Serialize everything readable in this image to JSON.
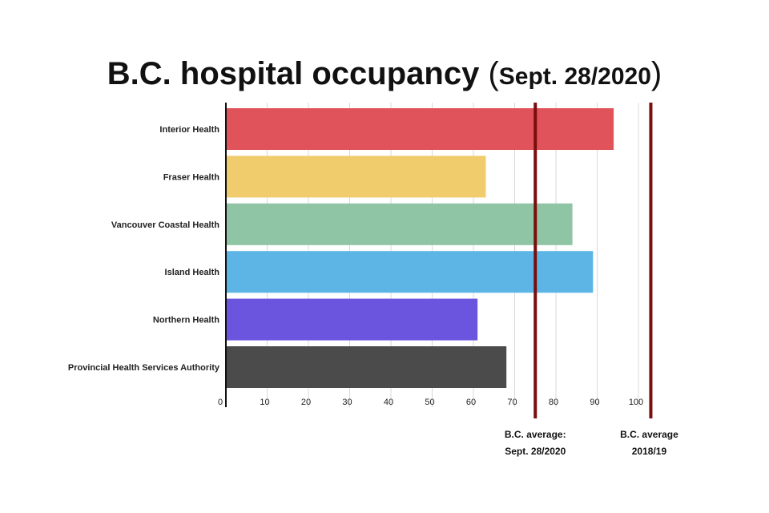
{
  "chart_data": {
    "type": "bar",
    "orientation": "horizontal",
    "title_main": "B.C. hospital occupancy",
    "title_date": "Sept. 28/2020",
    "title_open": "(",
    "title_close": ")",
    "categories": [
      "Interior Health",
      "Fraser Health",
      "Vancouver Coastal Health",
      "Island Health",
      "Northern Health",
      "Provincial Health Services Authority"
    ],
    "values": [
      94,
      63,
      84,
      89,
      61,
      68
    ],
    "colors": [
      "#e0535a",
      "#f0cc6d",
      "#8fc4a5",
      "#5db5e5",
      "#6b55de",
      "#4b4b4b"
    ],
    "xlim": [
      0,
      100
    ],
    "xticks": [
      0,
      10,
      20,
      30,
      40,
      50,
      60,
      70,
      80,
      90,
      100
    ],
    "grid": true,
    "reference_lines": [
      {
        "value": 75,
        "label_lines": [
          "B.C. average:",
          "Sept. 28/2020"
        ],
        "color": "#7a0d0d"
      },
      {
        "value": 103,
        "label_lines": [
          "B.C. average",
          "2018/19"
        ],
        "color": "#7a0d0d"
      }
    ]
  }
}
